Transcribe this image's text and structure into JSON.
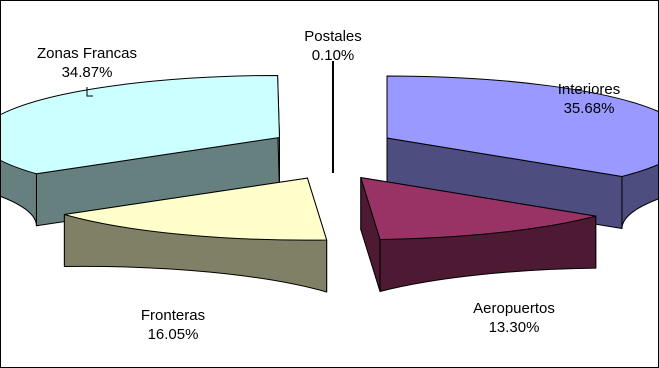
{
  "chart_data": {
    "type": "pie",
    "style": "3d-exploded",
    "title": "",
    "slices": [
      {
        "name": "Interiores",
        "value": 35.68,
        "pct_label": "35.68%",
        "top": "#9999ff",
        "side": "#4d4d80"
      },
      {
        "name": "Aeropuertos",
        "value": 13.3,
        "pct_label": "13.30%",
        "top": "#993366",
        "side": "#4d1933"
      },
      {
        "name": "Fronteras",
        "value": 16.05,
        "pct_label": "16.05%",
        "top": "#ffffcc",
        "side": "#808066"
      },
      {
        "name": "Zonas Francas",
        "value": 34.87,
        "pct_label": "34.87%",
        "top": "#ccffff",
        "side": "#668080"
      },
      {
        "name": "Postales",
        "value": 0.1,
        "pct_label": "0.10%",
        "top": "#000000",
        "side": "#000000"
      }
    ]
  }
}
